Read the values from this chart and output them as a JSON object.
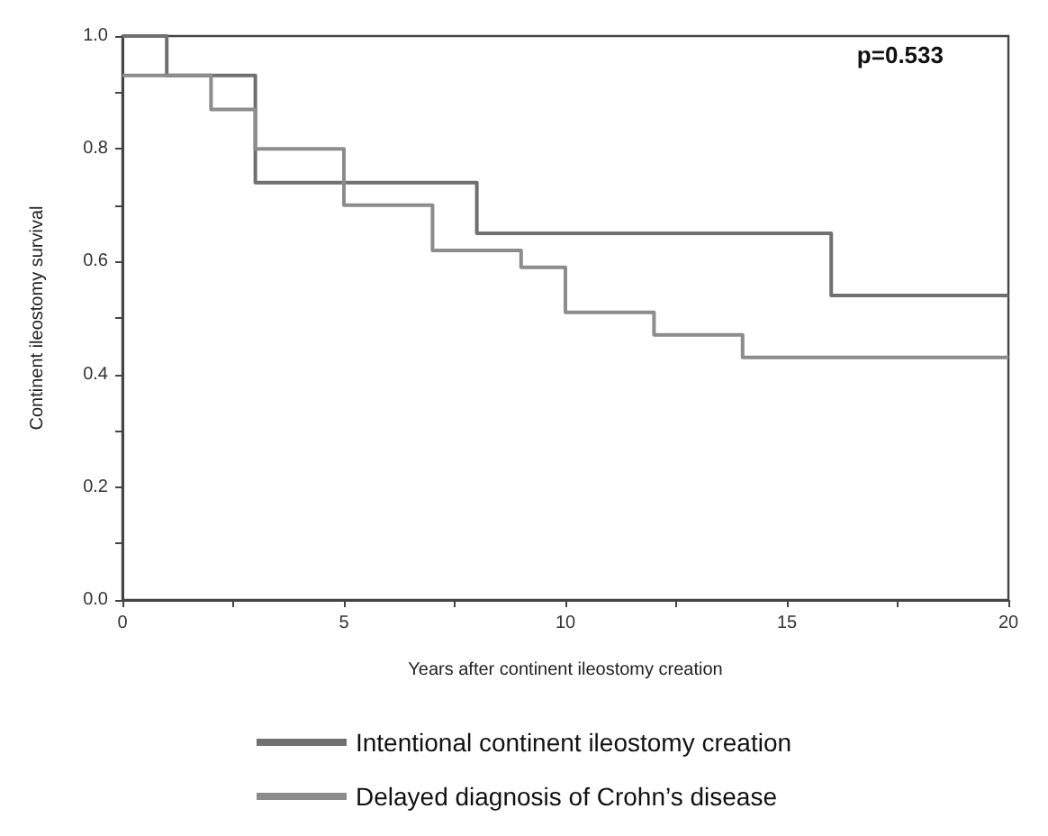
{
  "chart_data": {
    "type": "step",
    "xlabel": "Years after continent ileostomy creation",
    "ylabel": "Continent ileostomy survival",
    "annotations": [
      "p=0.533"
    ],
    "series": [
      {
        "name": "Intentional continent ileostomy creation",
        "color": "#707070",
        "x": [
          0,
          1,
          3,
          8,
          16,
          20
        ],
        "values": [
          1.0,
          0.93,
          0.74,
          0.65,
          0.54,
          0.54
        ]
      },
      {
        "name": "Delayed diagnosis of Crohn’s disease",
        "color": "#8c8c8c",
        "x": [
          0,
          2,
          3,
          5,
          7,
          9,
          10,
          12,
          14,
          20
        ],
        "values": [
          0.93,
          0.87,
          0.8,
          0.7,
          0.62,
          0.59,
          0.51,
          0.47,
          0.43,
          0.43
        ]
      }
    ],
    "xlim": [
      0,
      20
    ],
    "xticks": [
      0,
      {
        "value": 2.5,
        "label": null
      },
      5,
      {
        "value": 7.5,
        "label": null
      },
      10,
      {
        "value": 12.5,
        "label": null
      },
      15,
      {
        "value": 17.5,
        "label": null
      },
      20
    ],
    "ylim": [
      0,
      1
    ],
    "yticks": [
      {
        "value": 0,
        "label": "0.0"
      },
      {
        "value": 0.1,
        "label": null
      },
      {
        "value": 0.2,
        "label": "0.2"
      },
      {
        "value": 0.3,
        "label": null
      },
      {
        "value": 0.4,
        "label": "0.4"
      },
      {
        "value": 0.5,
        "label": null
      },
      {
        "value": 0.6,
        "label": "0.6"
      },
      {
        "value": 0.7,
        "label": null
      },
      {
        "value": 0.8,
        "label": "0.8"
      },
      {
        "value": 0.9,
        "label": null
      },
      {
        "value": 1,
        "label": "1.0"
      }
    ],
    "grid": false,
    "legend": "bottom",
    "marker": "none",
    "line_style": "solid"
  }
}
